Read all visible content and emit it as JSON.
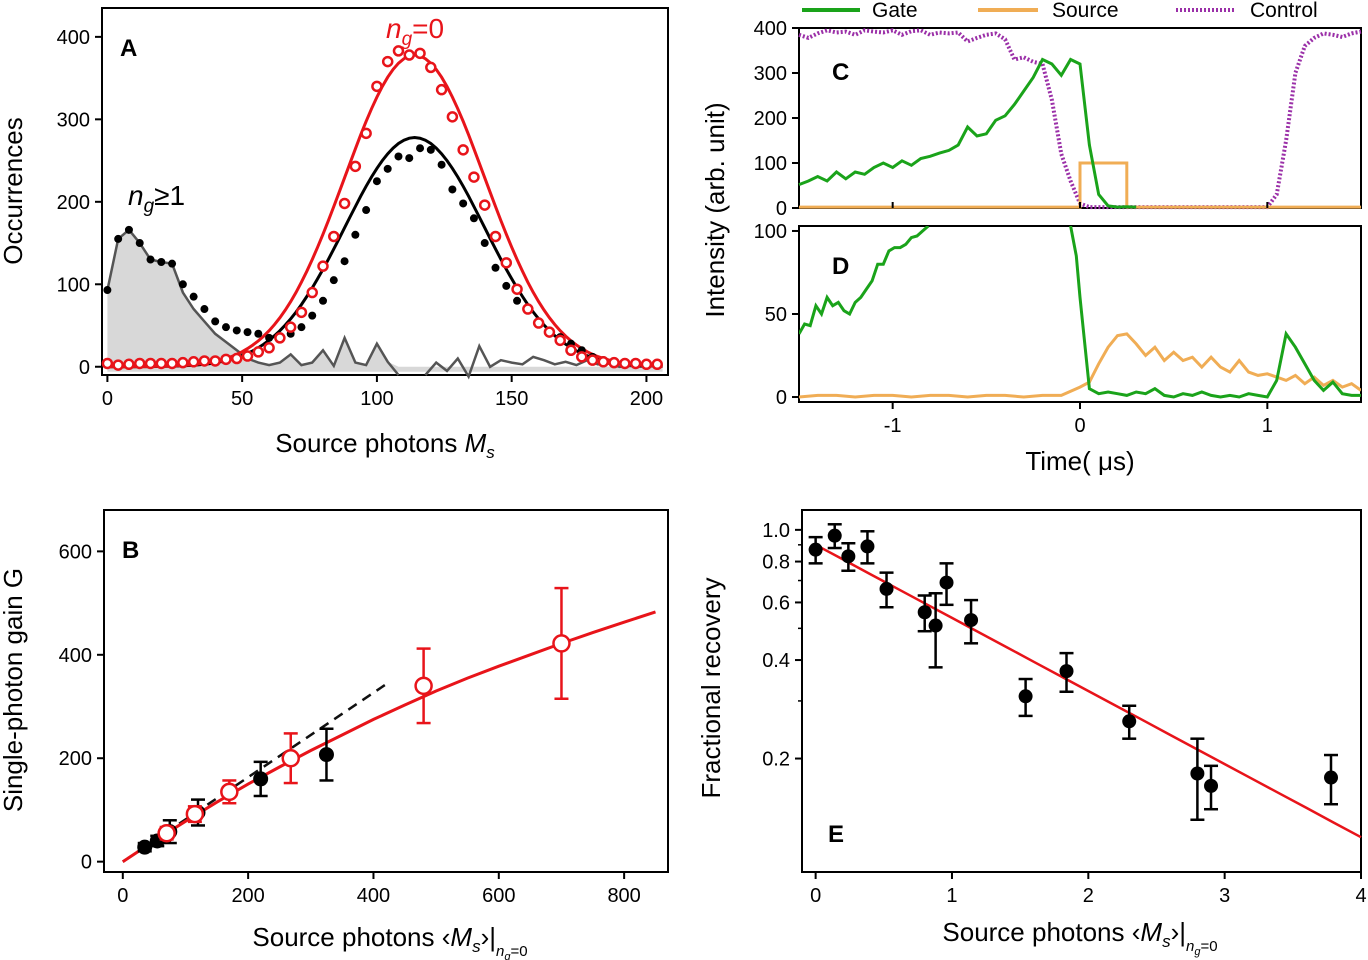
{
  "colors": {
    "red": "#e8141a",
    "black": "#000000",
    "gray": "#555555",
    "fill": "#d8d8d8",
    "green": "#1aa31a",
    "orange": "#f0ad55",
    "purple": "#9b30a8",
    "dash": "#111111"
  },
  "chart_data": [
    {
      "panel": "A",
      "type": "line",
      "xlabel": "Source photons",
      "xlabel_sym": "M",
      "xlabel_sub": "s",
      "ylabel": "Occurrences",
      "xlim": [
        -2,
        208
      ],
      "ylim": [
        -10,
        435
      ],
      "xticks": [
        0,
        50,
        100,
        150,
        200
      ],
      "yticks": [
        0,
        100,
        200,
        300,
        400
      ],
      "annotations": {
        "ng0_n": "n",
        "ng0_g": "g",
        "ng0_rest": "=0",
        "ng1_n": "n",
        "ng1_g": "g",
        "ng1_rest": "≥1"
      },
      "series": [
        {
          "x": [
            0,
            4,
            8,
            12,
            16,
            20,
            24,
            28,
            32,
            36,
            40,
            44,
            48,
            52,
            56,
            60,
            64,
            68,
            72,
            76,
            80,
            84,
            88,
            92,
            96,
            100,
            104,
            108,
            112,
            116,
            120,
            124,
            128,
            132,
            136,
            140,
            144,
            148,
            152,
            156,
            160,
            164,
            168,
            172,
            176,
            180,
            184,
            188,
            192,
            196,
            200,
            204
          ],
          "values": [
            4,
            2,
            3,
            4,
            4,
            4,
            4,
            5,
            6,
            7,
            7,
            9,
            10,
            13,
            18,
            23,
            35,
            48,
            66,
            90,
            122,
            158,
            198,
            243,
            283,
            340,
            370,
            383,
            378,
            380,
            363,
            336,
            303,
            263,
            230,
            196,
            158,
            126,
            94,
            70,
            53,
            42,
            32,
            20,
            12,
            8,
            6,
            5,
            4,
            4,
            3,
            3
          ]
        },
        {
          "x": [
            0,
            4,
            8,
            12,
            16,
            20,
            24,
            28,
            32,
            36,
            40,
            44,
            48,
            52,
            56,
            60,
            64,
            68,
            72,
            76,
            80,
            84,
            88,
            92,
            96,
            100,
            104,
            108,
            112,
            116,
            120,
            124,
            128,
            132,
            136,
            140,
            144,
            148,
            152,
            156,
            160,
            164,
            168,
            172,
            176,
            180,
            184,
            188,
            192,
            196,
            200,
            204
          ],
          "values": [
            93,
            155,
            166,
            150,
            130,
            127,
            125,
            100,
            85,
            70,
            55,
            48,
            44,
            42,
            40,
            35,
            35,
            40,
            48,
            62,
            80,
            105,
            128,
            160,
            190,
            225,
            240,
            255,
            253,
            265,
            263,
            245,
            215,
            198,
            180,
            150,
            120,
            98,
            80,
            70,
            55,
            42,
            36,
            28,
            20,
            12,
            8,
            6,
            5,
            4,
            3,
            3
          ]
        },
        {
          "x": [
            0,
            4,
            8,
            12,
            16,
            20,
            24,
            28,
            32,
            36,
            40,
            44,
            48,
            52,
            56,
            60,
            64,
            68,
            72,
            76,
            80,
            84,
            88,
            92,
            96,
            100,
            104,
            108
          ],
          "values": [
            93,
            155,
            166,
            150,
            130,
            127,
            125,
            90,
            70,
            55,
            40,
            30,
            20,
            10,
            5,
            2,
            5,
            15,
            2,
            5,
            20,
            1,
            35,
            5,
            2,
            28,
            6,
            -10
          ]
        },
        {
          "x": [
            118,
            122,
            126,
            130,
            134,
            138,
            142,
            146,
            150,
            154,
            158,
            162,
            166,
            170,
            174,
            178,
            182,
            186,
            190,
            194,
            198,
            202,
            206
          ],
          "values": [
            -10,
            5,
            -5,
            10,
            -12,
            25,
            0,
            8,
            5,
            3,
            12,
            8,
            3,
            6,
            2,
            8,
            3,
            4,
            0,
            1,
            0,
            2,
            0
          ]
        }
      ]
    },
    {
      "panel": "B",
      "type": "scatter",
      "xlabel": "Source photons",
      "xlabel_sym": "M",
      "xlabel_sub": "s",
      "xlabel_tail": "n",
      "xlabel_tail_sub": "g",
      "xlabel_tail_rest": "=0",
      "ylabel": "Single-photon gain G",
      "xlim": [
        -30,
        870
      ],
      "ylim": [
        -20,
        680
      ],
      "xticks": [
        0,
        200,
        400,
        600,
        800
      ],
      "yticks": [
        0,
        200,
        400,
        600
      ],
      "series": [
        {
          "x": [
            35,
            55,
            75,
            120,
            220,
            325
          ],
          "values": [
            28,
            40,
            58,
            95,
            160,
            207
          ],
          "err": [
            8,
            10,
            22,
            25,
            33,
            50
          ]
        },
        {
          "x": [
            70,
            115,
            170,
            268,
            480,
            700
          ],
          "values": [
            55,
            92,
            135,
            200,
            340,
            422
          ],
          "err": [
            12,
            15,
            22,
            48,
            72,
            107
          ]
        }
      ],
      "fit": {
        "x": [
          0,
          50,
          100,
          150,
          200,
          250,
          300,
          350,
          400,
          450,
          500,
          550,
          600,
          650,
          700,
          750,
          800,
          850
        ],
        "values": [
          0,
          40,
          78,
          115,
          150,
          183,
          215,
          245,
          275,
          303,
          330,
          355,
          378,
          400,
          422,
          443,
          463,
          483
        ]
      },
      "linear": {
        "x": [
          0,
          420
        ],
        "values": [
          0,
          343
        ]
      }
    },
    {
      "panel": "C",
      "type": "line",
      "ylabel": "Intensity (arb. unit)",
      "xlim": [
        -1.5,
        1.5
      ],
      "ylim": [
        0,
        400
      ],
      "yticks": [
        0,
        100,
        200,
        300,
        400
      ],
      "legend": [
        "Gate",
        "Source",
        "Control"
      ],
      "series": [
        {
          "name": "Gate",
          "x": [
            -1.5,
            -1.45,
            -1.4,
            -1.35,
            -1.3,
            -1.25,
            -1.2,
            -1.15,
            -1.1,
            -1.05,
            -1.0,
            -0.95,
            -0.9,
            -0.85,
            -0.8,
            -0.75,
            -0.7,
            -0.65,
            -0.6,
            -0.55,
            -0.5,
            -0.45,
            -0.4,
            -0.35,
            -0.3,
            -0.25,
            -0.2,
            -0.15,
            -0.1,
            -0.05,
            0.0,
            0.05,
            0.1,
            0.15,
            0.2,
            0.25,
            0.3
          ],
          "values": [
            52,
            60,
            70,
            60,
            80,
            65,
            80,
            75,
            90,
            100,
            90,
            105,
            95,
            110,
            115,
            122,
            128,
            140,
            180,
            160,
            165,
            195,
            205,
            230,
            260,
            290,
            330,
            320,
            295,
            330,
            320,
            140,
            30,
            5,
            2,
            3,
            2
          ]
        },
        {
          "name": "Source",
          "x": [
            -1.5,
            0.0,
            0.0,
            0.25,
            0.25,
            1.5
          ],
          "values": [
            2,
            2,
            100,
            100,
            2,
            2
          ]
        },
        {
          "name": "Control",
          "x": [
            -1.5,
            -1.45,
            -1.4,
            -1.35,
            -1.3,
            -1.25,
            -1.2,
            -1.15,
            -1.1,
            -1.05,
            -1.0,
            -0.95,
            -0.9,
            -0.85,
            -0.8,
            -0.75,
            -0.7,
            -0.65,
            -0.6,
            -0.55,
            -0.5,
            -0.45,
            -0.4,
            -0.35,
            -0.3,
            -0.25,
            -0.2,
            -0.15,
            -0.1,
            -0.05,
            0.0,
            0.05,
            0.1,
            0.15,
            0.2,
            0.3,
            0.5,
            0.7,
            0.9,
            1.0,
            1.05,
            1.1,
            1.15,
            1.2,
            1.25,
            1.3,
            1.35,
            1.4,
            1.45,
            1.5
          ],
          "values": [
            385,
            378,
            388,
            395,
            390,
            392,
            385,
            395,
            392,
            390,
            395,
            385,
            393,
            395,
            385,
            390,
            388,
            390,
            370,
            378,
            385,
            388,
            375,
            330,
            335,
            325,
            320,
            240,
            120,
            60,
            10,
            2,
            2,
            2,
            2,
            2,
            2,
            2,
            2,
            2,
            30,
            150,
            300,
            360,
            378,
            388,
            385,
            380,
            388,
            392
          ]
        }
      ]
    },
    {
      "panel": "D",
      "type": "line",
      "xlabel": "Time( μs)",
      "xlim": [
        -1.5,
        1.5
      ],
      "ylim": [
        -3,
        103
      ],
      "xticks": [
        -1,
        0,
        1
      ],
      "yticks": [
        0,
        50,
        100
      ],
      "series": [
        {
          "name": "Gate",
          "x": [
            -1.5,
            -1.47,
            -1.44,
            -1.41,
            -1.38,
            -1.35,
            -1.32,
            -1.29,
            -1.26,
            -1.23,
            -1.2,
            -1.17,
            -1.14,
            -1.11,
            -1.08,
            -1.05,
            -1.02,
            -0.99,
            -0.96,
            -0.93,
            -0.9,
            -0.87,
            -0.84,
            -0.81
          ],
          "values": [
            38,
            44,
            43,
            55,
            50,
            60,
            55,
            57,
            52,
            50,
            57,
            60,
            65,
            70,
            80,
            80,
            88,
            90,
            90,
            92,
            96,
            97,
            100,
            103
          ]
        },
        {
          "name": "Gate",
          "x": [
            -0.05,
            -0.02,
            0.0,
            0.05,
            0.1,
            0.15,
            0.2,
            0.25,
            0.3,
            0.35,
            0.4,
            0.45,
            0.5,
            0.55,
            0.6,
            0.65,
            0.7,
            0.75,
            0.8,
            0.85,
            0.9,
            0.95,
            1.0,
            1.05,
            1.1,
            1.15,
            1.2,
            1.25,
            1.3,
            1.35,
            1.4,
            1.45,
            1.5
          ],
          "values": [
            103,
            85,
            60,
            5,
            2,
            3,
            2,
            1,
            3,
            2,
            5,
            1,
            0,
            2,
            1,
            3,
            1,
            0,
            1,
            0,
            2,
            1,
            0,
            10,
            38,
            30,
            20,
            10,
            4,
            9,
            2,
            1,
            1
          ]
        },
        {
          "name": "Source",
          "x": [
            -1.5,
            -1.4,
            -1.3,
            -1.2,
            -1.1,
            -1.0,
            -0.9,
            -0.8,
            -0.7,
            -0.6,
            -0.5,
            -0.4,
            -0.3,
            -0.2,
            -0.1,
            0.0,
            0.05,
            0.1,
            0.15,
            0.2,
            0.25,
            0.3,
            0.35,
            0.4,
            0.45,
            0.5,
            0.55,
            0.6,
            0.65,
            0.7,
            0.75,
            0.8,
            0.85,
            0.9,
            0.95,
            1.0,
            1.05,
            1.1,
            1.15,
            1.2,
            1.25,
            1.3,
            1.35,
            1.4,
            1.45,
            1.5
          ],
          "values": [
            0,
            1,
            1,
            0,
            1,
            1,
            0,
            1,
            1,
            0,
            1,
            1,
            0,
            1,
            1,
            6,
            9,
            20,
            30,
            37,
            38,
            32,
            25,
            30,
            22,
            27,
            22,
            24,
            18,
            24,
            18,
            15,
            22,
            15,
            13,
            14,
            12,
            10,
            13,
            8,
            12,
            7,
            10,
            6,
            8,
            4
          ]
        }
      ]
    },
    {
      "panel": "E",
      "type": "scatter",
      "xlabel": "Source photons",
      "xlabel_sym": "M",
      "xlabel_sub": "s",
      "xlabel_tail": "n",
      "xlabel_tail_sub": "g",
      "xlabel_tail_rest": "=0",
      "ylabel": "Fractional recovery",
      "xlim": [
        -0.1,
        4.0
      ],
      "ylim": [
        0.09,
        1.15
      ],
      "log_y": true,
      "xticks": [
        0,
        1,
        2,
        3,
        4
      ],
      "yticks": [
        0.2,
        0.4,
        0.6,
        0.8,
        1.0
      ],
      "series": [
        {
          "x": [
            0,
            0.14,
            0.24,
            0.38,
            0.52,
            0.8,
            0.88,
            0.96,
            1.14,
            1.54,
            1.84,
            2.3,
            2.8,
            2.9,
            3.78
          ],
          "values": [
            0.87,
            0.96,
            0.83,
            0.89,
            0.66,
            0.56,
            0.51,
            0.69,
            0.53,
            0.31,
            0.37,
            0.26,
            0.18,
            0.165,
            0.175
          ],
          "err": [
            0.08,
            0.08,
            0.08,
            0.1,
            0.08,
            0.07,
            0.13,
            0.1,
            0.08,
            0.04,
            0.05,
            0.03,
            0.05,
            0.025,
            0.03
          ]
        }
      ],
      "fit": {
        "x": [
          0,
          4
        ],
        "values": [
          0.9,
          0.115
        ]
      }
    }
  ]
}
